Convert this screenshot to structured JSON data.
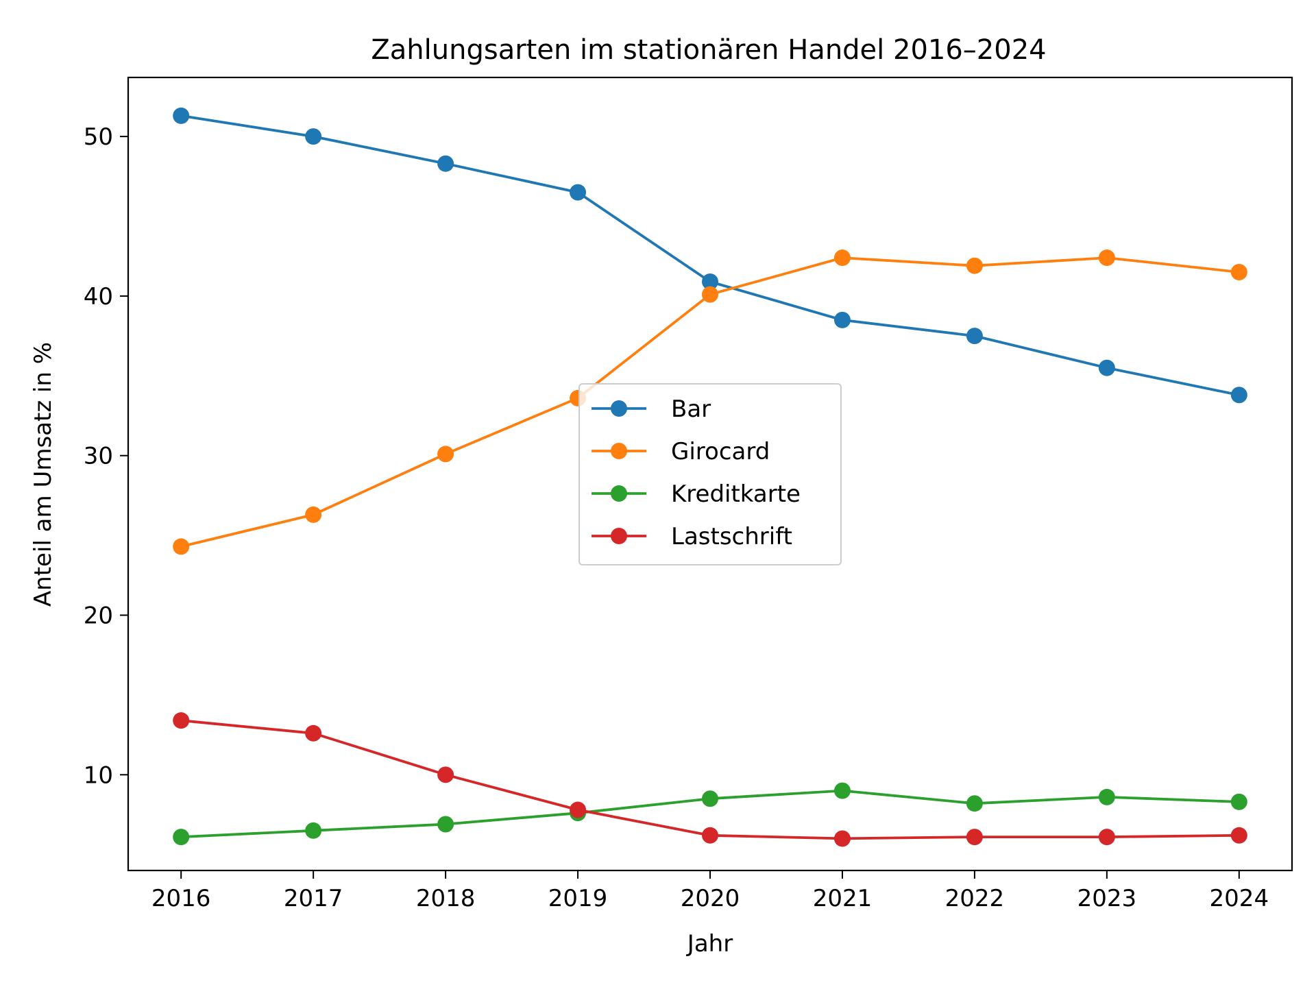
{
  "chart_data": {
    "type": "line",
    "title": "Zahlungsarten im stationären Handel 2016–2024",
    "xlabel": "Jahr",
    "ylabel": "Anteil am Umsatz in %",
    "x": [
      2016,
      2017,
      2018,
      2019,
      2020,
      2021,
      2022,
      2023,
      2024
    ],
    "x_tick_labels": [
      "2016",
      "2017",
      "2018",
      "2019",
      "2020",
      "2021",
      "2022",
      "2023",
      "2024"
    ],
    "y_ticks": [
      10,
      20,
      30,
      40,
      50
    ],
    "y_tick_labels": [
      "10",
      "20",
      "30",
      "40",
      "50"
    ],
    "xlim": [
      2015.6,
      2024.4
    ],
    "ylim": [
      4.0,
      53.7
    ],
    "grid": false,
    "legend_position": "center",
    "series": [
      {
        "name": "Bar",
        "color": "#1f77b4",
        "values": [
          51.3,
          50.0,
          48.3,
          46.5,
          40.9,
          38.5,
          37.5,
          35.5,
          33.8
        ]
      },
      {
        "name": "Girocard",
        "color": "#ff7f0e",
        "values": [
          24.3,
          26.3,
          30.1,
          33.6,
          40.1,
          42.4,
          41.9,
          42.4,
          41.5
        ]
      },
      {
        "name": "Kreditkarte",
        "color": "#2ca02c",
        "values": [
          6.1,
          6.5,
          6.9,
          7.6,
          8.5,
          9.0,
          8.2,
          8.6,
          8.3
        ]
      },
      {
        "name": "Lastschrift",
        "color": "#d62728",
        "values": [
          13.4,
          12.6,
          10.0,
          7.8,
          6.2,
          6.0,
          6.1,
          6.1,
          6.2
        ]
      }
    ]
  }
}
